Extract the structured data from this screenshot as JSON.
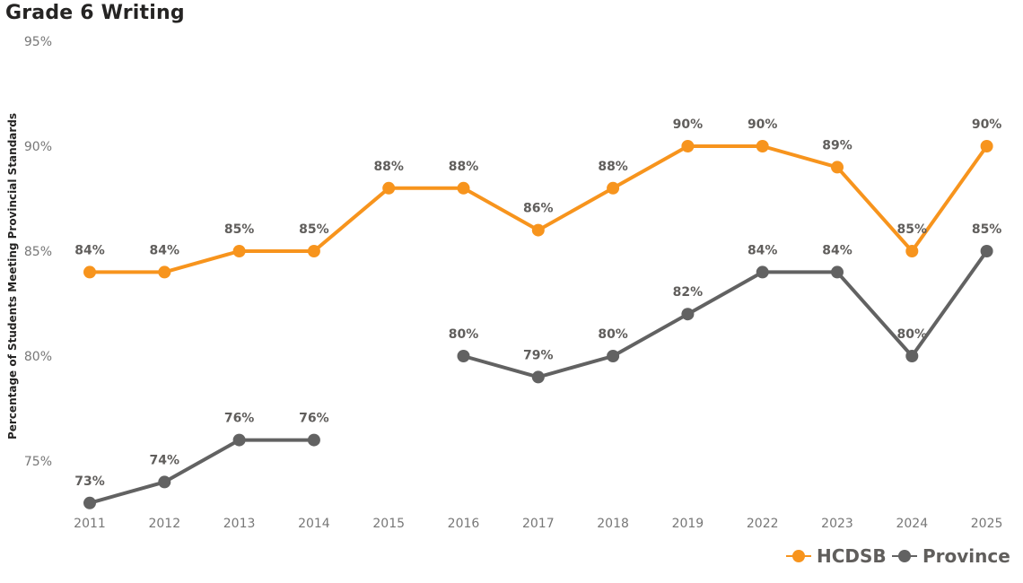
{
  "chart_data": {
    "type": "line",
    "title": "Grade 6 Writing",
    "ylabel": "Percentage of Students Meeting Provincial Standards",
    "xlabel": "",
    "categories": [
      "2011",
      "2012",
      "2013",
      "2014",
      "2015",
      "2016",
      "2017",
      "2018",
      "2019",
      "2022",
      "2023",
      "2024",
      "2025"
    ],
    "ylim": [
      72,
      95
    ],
    "yticks": [
      75,
      80,
      85,
      90,
      95
    ],
    "ytick_labels": [
      "75%",
      "80%",
      "85%",
      "90%",
      "95%"
    ],
    "legend_position": "bottom-right",
    "series": [
      {
        "name": "HCDSB",
        "color": "#F7941D",
        "values": [
          84,
          84,
          85,
          85,
          88,
          88,
          86,
          88,
          90,
          90,
          89,
          85,
          90
        ],
        "labels": [
          "84%",
          "84%",
          "85%",
          "85%",
          "88%",
          "88%",
          "86%",
          "88%",
          "90%",
          "90%",
          "89%",
          "85%",
          "90%"
        ]
      },
      {
        "name": "Province",
        "color": "#626262",
        "values": [
          73,
          74,
          76,
          76,
          null,
          80,
          79,
          80,
          82,
          84,
          84,
          80,
          85
        ],
        "labels": [
          "73%",
          "74%",
          "76%",
          "76%",
          null,
          "80%",
          "79%",
          "80%",
          "82%",
          "84%",
          "84%",
          "80%",
          "85%"
        ]
      }
    ]
  }
}
